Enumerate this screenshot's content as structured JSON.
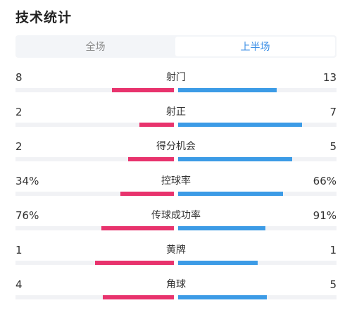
{
  "header": {
    "title": "技术统计"
  },
  "tabs": [
    {
      "label": "全场",
      "active": false
    },
    {
      "label": "上半场",
      "active": true
    }
  ],
  "colors": {
    "left_team": "#e8336d",
    "right_team": "#3c9be6",
    "active_tab": "#3a8ee6"
  },
  "stats": [
    {
      "label": "射门",
      "left": "8",
      "right": "13",
      "left_bar": 0.39,
      "right_bar": 0.62
    },
    {
      "label": "射正",
      "left": "2",
      "right": "7",
      "left_bar": 0.22,
      "right_bar": 0.78
    },
    {
      "label": "得分机会",
      "left": "2",
      "right": "5",
      "left_bar": 0.29,
      "right_bar": 0.72
    },
    {
      "label": "控球率",
      "left": "34%",
      "right": "66%",
      "left_bar": 0.34,
      "right_bar": 0.66
    },
    {
      "label": "传球成功率",
      "left": "76%",
      "right": "91%",
      "left_bar": 0.46,
      "right_bar": 0.55
    },
    {
      "label": "黄牌",
      "left": "1",
      "right": "1",
      "left_bar": 0.5,
      "right_bar": 0.5
    },
    {
      "label": "角球",
      "left": "4",
      "right": "5",
      "left_bar": 0.45,
      "right_bar": 0.56
    }
  ]
}
